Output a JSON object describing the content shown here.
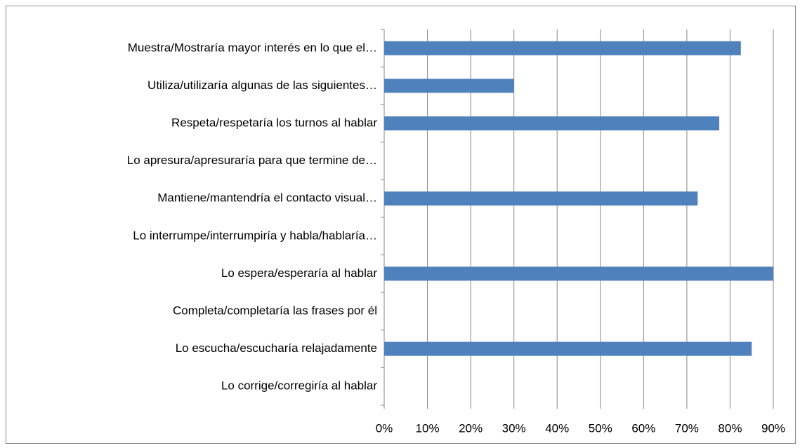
{
  "chart_data": {
    "type": "bar",
    "orientation": "horizontal",
    "categories": [
      "Muestra/Mostraría mayor interés en lo que el…",
      "Utiliza/utilizaría algunas de las siguientes…",
      "Respeta/respetaría los turnos al hablar",
      "Lo apresura/apresuraría para que termine de…",
      "Mantiene/mantendría el contacto visual…",
      "Lo interrumpe/interrumpiría y habla/hablaría…",
      "Lo espera/esperaría al hablar",
      "Completa/completaría las frases por él",
      "Lo escucha/escucharía relajadamente",
      "Lo corrige/corregiría al hablar"
    ],
    "values": [
      82.5,
      30,
      77.5,
      0,
      72.5,
      0,
      90,
      0,
      85,
      0
    ],
    "color": "#4f81bd",
    "xlim": [
      0,
      90
    ],
    "xticks": [
      {
        "value": 0,
        "label": "0%"
      },
      {
        "value": 10,
        "label": "10%"
      },
      {
        "value": 20,
        "label": "20%"
      },
      {
        "value": 30,
        "label": "30%"
      },
      {
        "value": 40,
        "label": "40%"
      },
      {
        "value": 50,
        "label": "50%"
      },
      {
        "value": 60,
        "label": "60%"
      },
      {
        "value": 70,
        "label": "70%"
      },
      {
        "value": 80,
        "label": "80%"
      },
      {
        "value": 90,
        "label": "90%"
      }
    ],
    "grid": true
  }
}
